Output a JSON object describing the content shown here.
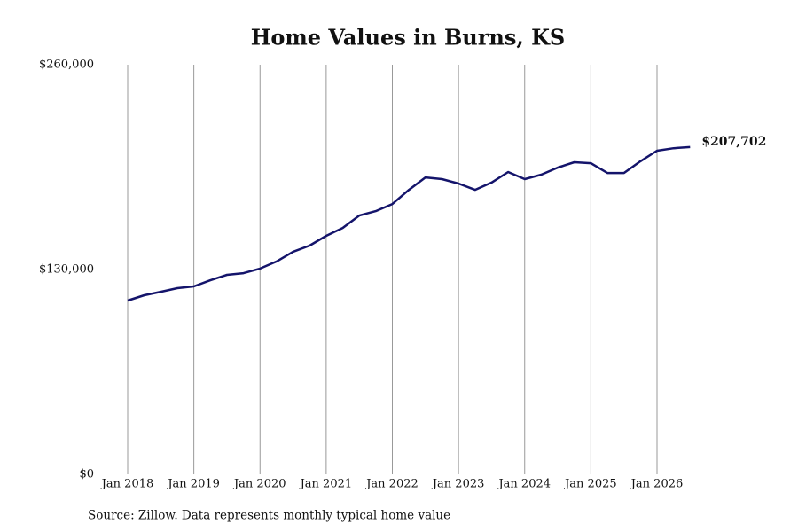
{
  "chart_data": {
    "type": "line",
    "title": "Home Values in Burns, KS",
    "source": "Source: Zillow. Data represents monthly typical home value",
    "x": [
      "2018-01",
      "2018-04",
      "2018-07",
      "2018-10",
      "2019-01",
      "2019-04",
      "2019-07",
      "2019-10",
      "2020-01",
      "2020-04",
      "2020-07",
      "2020-10",
      "2021-01",
      "2021-04",
      "2021-07",
      "2021-10",
      "2022-01",
      "2022-04",
      "2022-07",
      "2022-10",
      "2023-01",
      "2023-04",
      "2023-07",
      "2023-10",
      "2024-01",
      "2024-04",
      "2024-07",
      "2024-10",
      "2025-01",
      "2025-04",
      "2025-07",
      "2025-10",
      "2026-01",
      "2026-04",
      "2026-07"
    ],
    "values": [
      110300,
      113700,
      115900,
      118200,
      119300,
      123200,
      126600,
      127700,
      130600,
      135100,
      141300,
      145200,
      151400,
      156400,
      164300,
      167100,
      171600,
      180600,
      188500,
      187400,
      184600,
      180600,
      185200,
      191900,
      187400,
      190200,
      194700,
      198100,
      197500,
      191300,
      191300,
      198700,
      205400,
      207000,
      207702
    ],
    "value_labels": [
      null,
      null,
      null,
      null,
      null,
      null,
      null,
      null,
      null,
      null,
      null,
      null,
      null,
      null,
      null,
      null,
      null,
      null,
      null,
      null,
      null,
      null,
      null,
      null,
      null,
      null,
      null,
      null,
      null,
      null,
      null,
      null,
      null,
      null,
      "$207,702"
    ],
    "color": "#14146b",
    "ylim": [
      0,
      260000
    ],
    "yticks": [
      {
        "value": 0,
        "label": "$0"
      },
      {
        "value": 130000,
        "label": "$130,000"
      },
      {
        "value": 260000,
        "label": "$260,000"
      }
    ],
    "xticks": [
      {
        "value": "2018-01",
        "label": "Jan 2018"
      },
      {
        "value": "2019-01",
        "label": "Jan 2019"
      },
      {
        "value": "2020-01",
        "label": "Jan 2020"
      },
      {
        "value": "2021-01",
        "label": "Jan 2021"
      },
      {
        "value": "2022-01",
        "label": "Jan 2022"
      },
      {
        "value": "2023-01",
        "label": "Jan 2023"
      },
      {
        "value": "2024-01",
        "label": "Jan 2024"
      },
      {
        "value": "2025-01",
        "label": "Jan 2025"
      },
      {
        "value": "2026-01",
        "label": "Jan 2026"
      }
    ],
    "xgrid": true
  }
}
